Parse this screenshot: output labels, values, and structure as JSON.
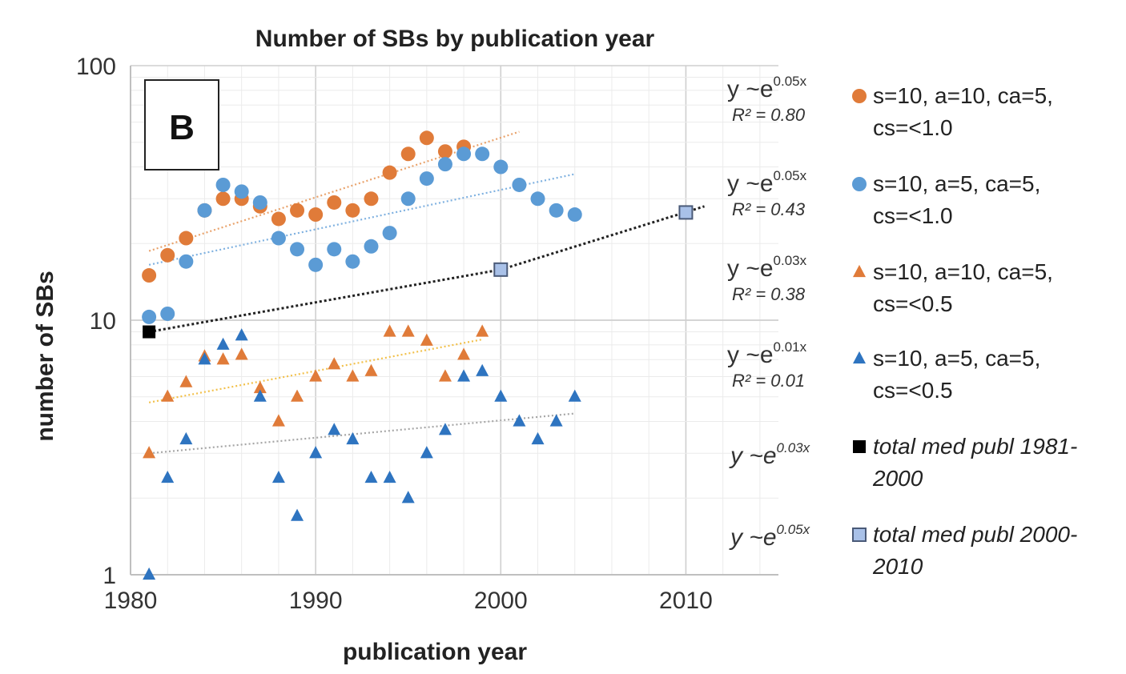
{
  "chart_data": {
    "type": "scatter",
    "title": "Number of SBs by publication year",
    "xlabel": "publication year",
    "ylabel": "number of SBs",
    "panel_label": "B",
    "y_scale": "log",
    "xlim": [
      1980,
      2015
    ],
    "ylim": [
      1,
      100
    ],
    "x_ticks": [
      1980,
      1990,
      2000,
      2010
    ],
    "y_ticks": [
      1,
      10,
      100
    ],
    "y_tick_labels": [
      "1",
      "10",
      "100"
    ],
    "grid": true,
    "legend_position": "right",
    "series": [
      {
        "name": "s=10, a=10, ca=5, cs=<1.0",
        "legend_lines": [
          "s=10, a=10, ca=5,",
          "cs=<1.0"
        ],
        "marker": "circle",
        "color": "#E07B39",
        "trend_color": "#E9A26B",
        "x": [
          1981,
          1982,
          1983,
          1984,
          1985,
          1986,
          1987,
          1988,
          1989,
          1990,
          1991,
          1992,
          1993,
          1994,
          1995,
          1996,
          1997,
          1998
        ],
        "y": [
          15,
          18,
          21,
          27,
          30,
          30,
          28,
          25,
          27,
          26,
          29,
          27,
          30,
          38,
          45,
          52,
          46,
          48
        ],
        "trend": {
          "x": [
            1981,
            2001
          ],
          "y": [
            18.7,
            55
          ]
        },
        "eq_base": "y ~e",
        "eq_exp": "0.05x",
        "r2": "R² = 0.80"
      },
      {
        "name": "s=10, a=5, ca=5, cs=<1.0",
        "legend_lines": [
          "s=10, a=5, ca=5,",
          "cs=<1.0"
        ],
        "marker": "circle",
        "color": "#5B9BD5",
        "trend_color": "#7FB1E0",
        "x": [
          1981,
          1982,
          1983,
          1984,
          1985,
          1986,
          1987,
          1988,
          1989,
          1990,
          1991,
          1992,
          1993,
          1994,
          1995,
          1996,
          1997,
          1998,
          1999,
          2000,
          2001,
          2002,
          2003,
          2004
        ],
        "y": [
          10.3,
          10.6,
          17,
          27,
          34,
          32,
          29,
          21,
          19,
          16.5,
          19,
          17,
          19.5,
          22,
          30,
          36,
          41,
          45,
          45,
          40,
          34,
          30,
          27,
          26
        ],
        "trend": {
          "x": [
            1981,
            2004
          ],
          "y": [
            16.5,
            37.5
          ]
        },
        "eq_base": "y ~e",
        "eq_exp": "0.05x",
        "r2": "R² = 0.43"
      },
      {
        "name": "s=10, a=10, ca=5, cs=<0.5",
        "legend_lines": [
          "s=10, a=10, ca=5,",
          "cs=<0.5"
        ],
        "marker": "triangle",
        "color": "#E07B39",
        "trend_color": "#F2C04A",
        "x": [
          1981,
          1982,
          1983,
          1984,
          1985,
          1986,
          1987,
          1988,
          1989,
          1990,
          1991,
          1992,
          1993,
          1994,
          1995,
          1996,
          1997,
          1998,
          1999
        ],
        "y": [
          3,
          5,
          5.7,
          7.2,
          7,
          7.3,
          5.4,
          4,
          5,
          6,
          6.7,
          6,
          6.3,
          9,
          9,
          8.3,
          6,
          7.3,
          9
        ],
        "trend": {
          "x": [
            1981,
            1999
          ],
          "y": [
            4.75,
            8.4
          ]
        },
        "eq_base": "y ~e",
        "eq_exp": "0.03x",
        "r2": "R² = 0.38"
      },
      {
        "name": "s=10, a=5, ca=5, cs=<0.5",
        "legend_lines": [
          "s=10, a=5, ca=5,",
          "cs=<0.5"
        ],
        "marker": "triangle",
        "color": "#2E74C0",
        "trend_color": "#A6A6A6",
        "x": [
          1981,
          1982,
          1983,
          1984,
          1985,
          1986,
          1987,
          1988,
          1989,
          1990,
          1991,
          1992,
          1993,
          1994,
          1995,
          1996,
          1997,
          1998,
          1999,
          2000,
          2001,
          2002,
          2003,
          2004
        ],
        "y": [
          1,
          2.4,
          3.4,
          7,
          8,
          8.7,
          5,
          2.4,
          1.7,
          3,
          3.7,
          3.4,
          2.4,
          2.4,
          2,
          3,
          3.7,
          6,
          6.3,
          5,
          4,
          3.4,
          4,
          5
        ],
        "trend": {
          "x": [
            1981,
            2004
          ],
          "y": [
            3,
            4.3
          ]
        },
        "eq_base": "y ~e",
        "eq_exp": "0.01x",
        "r2": "R² = 0.01"
      },
      {
        "name": "total med publ 1981-2000",
        "legend_lines": [
          "total med publ 1981-",
          "2000"
        ],
        "marker": "square",
        "color": "#000000",
        "x": [
          1981
        ],
        "y": [
          9
        ],
        "trend": {
          "x": [
            1981,
            2000
          ],
          "y": [
            9,
            15.8
          ]
        },
        "trend_color": "#222222",
        "eq_base": "y ~e",
        "eq_exp": "0.03x",
        "r2": ""
      },
      {
        "name": "total med publ 2000-2010",
        "legend_lines": [
          "total med publ 2000-",
          "2010"
        ],
        "marker": "square",
        "color": "#A9C1E8",
        "x": [
          2000,
          2010
        ],
        "y": [
          15.8,
          26.5
        ],
        "trend": {
          "x": [
            2000,
            2011
          ],
          "y": [
            15.8,
            28
          ]
        },
        "trend_color": "#222222",
        "eq_base": "y ~e",
        "eq_exp": "0.05x",
        "r2": ""
      }
    ]
  }
}
